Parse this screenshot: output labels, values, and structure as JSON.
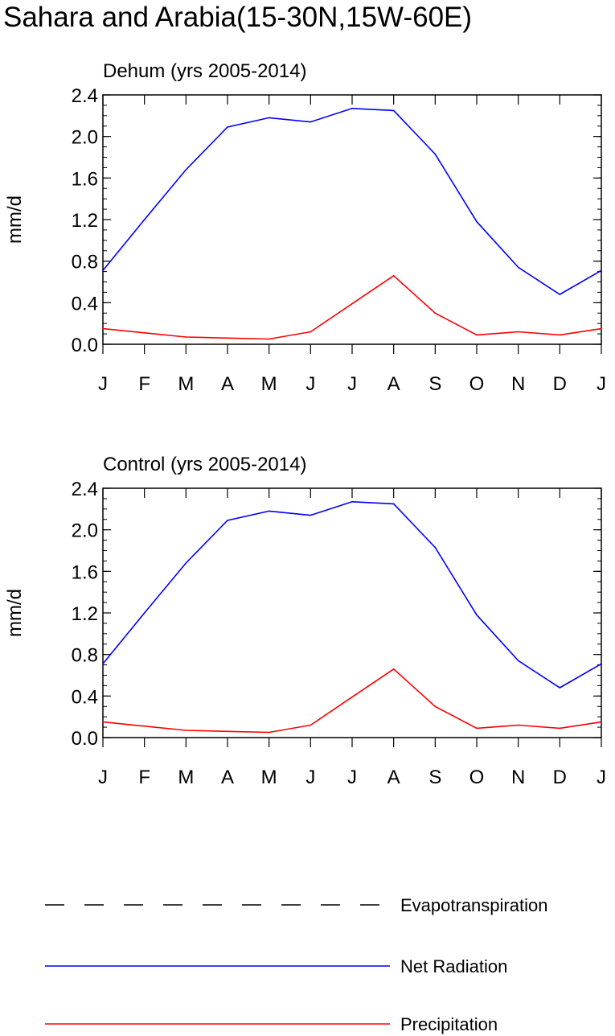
{
  "title": "Sahara and Arabia(15-30N,15W-60E)",
  "colors": {
    "net_radiation": "#0000ff",
    "precipitation": "#ff0000",
    "evapotranspiration": "#000000"
  },
  "legend": [
    {
      "label": "Evapotranspiration",
      "style": "dashed",
      "color": "#000000"
    },
    {
      "label": "Net Radiation",
      "style": "solid",
      "color": "#0000ff"
    },
    {
      "label": "Precipitation",
      "style": "solid",
      "color": "#ff0000"
    }
  ],
  "chart_data": [
    {
      "type": "line",
      "title": "Dehum (yrs 2005-2014)",
      "ylabel": "mm/d",
      "xlabel": "",
      "categories": [
        "J",
        "F",
        "M",
        "A",
        "M",
        "J",
        "J",
        "A",
        "S",
        "O",
        "N",
        "D",
        "J"
      ],
      "ylim": [
        0.0,
        2.4
      ],
      "yticks": [
        "0.0",
        "0.4",
        "0.8",
        "1.2",
        "1.6",
        "2.0",
        "2.4"
      ],
      "series": [
        {
          "name": "Net Radiation",
          "values": [
            0.71,
            1.2,
            1.68,
            2.09,
            2.18,
            2.14,
            2.27,
            2.25,
            1.83,
            1.18,
            0.74,
            0.48,
            0.71
          ]
        },
        {
          "name": "Precipitation",
          "values": [
            0.15,
            0.11,
            0.07,
            0.06,
            0.05,
            0.12,
            0.39,
            0.66,
            0.3,
            0.09,
            0.12,
            0.09,
            0.15
          ]
        }
      ]
    },
    {
      "type": "line",
      "title": "Control (yrs 2005-2014)",
      "ylabel": "mm/d",
      "xlabel": "",
      "categories": [
        "J",
        "F",
        "M",
        "A",
        "M",
        "J",
        "J",
        "A",
        "S",
        "O",
        "N",
        "D",
        "J"
      ],
      "ylim": [
        0.0,
        2.4
      ],
      "yticks": [
        "0.0",
        "0.4",
        "0.8",
        "1.2",
        "1.6",
        "2.0",
        "2.4"
      ],
      "series": [
        {
          "name": "Net Radiation",
          "values": [
            0.71,
            1.2,
            1.68,
            2.09,
            2.18,
            2.14,
            2.27,
            2.25,
            1.83,
            1.18,
            0.74,
            0.48,
            0.71
          ]
        },
        {
          "name": "Precipitation",
          "values": [
            0.15,
            0.11,
            0.07,
            0.06,
            0.05,
            0.12,
            0.39,
            0.66,
            0.3,
            0.09,
            0.12,
            0.09,
            0.15
          ]
        }
      ]
    }
  ]
}
